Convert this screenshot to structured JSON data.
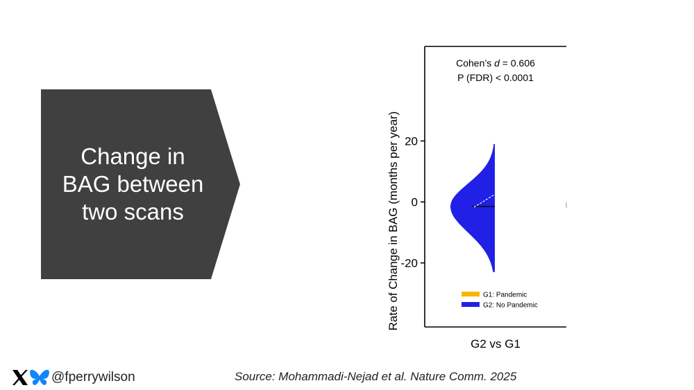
{
  "slide": {
    "callout_text": "Change in BAG between two scans",
    "handle": "@fperrywilson",
    "source": "Source: Mohammadi-Nejad et al. Nature Comm. 2025",
    "callout_color": "#404040"
  },
  "chart_data": {
    "type": "violin",
    "ylabel": "Rate of Change in BAG (months per year)",
    "xlabel": "G2 vs G1",
    "yticks": [
      20,
      0,
      -20
    ],
    "ylim": [
      -41,
      51
    ],
    "annotation_line1_prefix": "Cohen’s ",
    "annotation_line1_var": "d",
    "annotation_line1_suffix": " = 0.606",
    "annotation_line2": "P (FDR) < 0.0001",
    "legend": [
      {
        "label": "G1: Pandemic",
        "color": "#f5b800"
      },
      {
        "label": "G2: No Pandemic",
        "color": "#2020e6"
      }
    ],
    "series": [
      {
        "name": "G2: No Pandemic",
        "side": "left",
        "color": "#2020e6",
        "min": -23,
        "max": 19,
        "median": -1.5
      }
    ]
  }
}
